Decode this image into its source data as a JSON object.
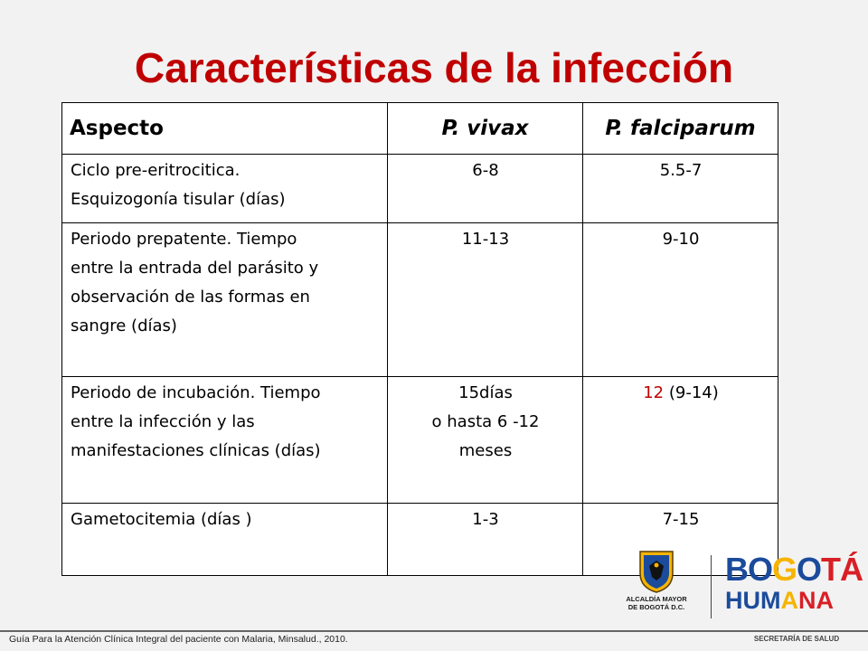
{
  "title": "Características de la infección",
  "table": {
    "headers": [
      "Aspecto",
      "P. vivax",
      "P. falciparum"
    ],
    "rows": [
      {
        "aspect_lines": [
          "Ciclo pre-eritrocitica.",
          "Esquizogonía tisular (días)"
        ],
        "vivax": "6-8",
        "falciparum": "5.5-7"
      },
      {
        "aspect_lines": [
          "Periodo prepatente. Tiempo",
          "entre la entrada del parásito y",
          "observación de las formas en",
          "sangre  (días)"
        ],
        "vivax": "11-13",
        "falciparum": "9-10"
      },
      {
        "aspect_lines": [
          "Periodo de incubación. Tiempo",
          "entre la infección y las",
          "manifestaciones clínicas (días)"
        ],
        "vivax_lines": [
          "15días",
          "o hasta 6 -12",
          "meses"
        ],
        "falciparum_main": "12",
        "falciparum_range": " (9-14)"
      },
      {
        "aspect_lines": [
          "Gametocitemia (días )"
        ],
        "vivax": "1-3",
        "falciparum": "7-15"
      }
    ]
  },
  "logo": {
    "alcaldia_line1": "ALCALDÍA MAYOR",
    "alcaldia_line2": "DE BOGOTÁ D.C.",
    "bogota_letters": [
      "B",
      "O",
      "G",
      "O",
      "T",
      "Á"
    ],
    "humana_letters": [
      "H",
      "U",
      "M",
      "A",
      "N",
      "A"
    ],
    "secretaria": "SECRETARÍA DE SALUD"
  },
  "source": "Guía Para la Atención Clínica Integral del paciente con Malaria,  Minsalud., 2010.",
  "colors": {
    "accent_red": "#c00000",
    "logo_blue": "#1b4b9b",
    "logo_red": "#d91f26",
    "logo_yellow": "#f6b400"
  }
}
